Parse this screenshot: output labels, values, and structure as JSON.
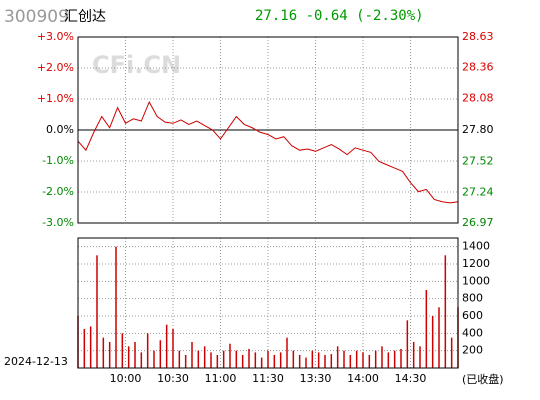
{
  "header": {
    "code": "300909",
    "name": "汇创达",
    "quote": "27.16 -0.64 (-2.30%)",
    "watermark": "CFi.CN"
  },
  "chart_data": [
    {
      "type": "line",
      "xlim": [
        0,
        240
      ],
      "xticks": [
        30,
        60,
        90,
        120,
        150,
        180,
        210
      ],
      "ylim": [
        -3,
        3
      ],
      "yticks": [
        {
          "value": 3,
          "label": "+3.0%"
        },
        {
          "value": 2,
          "label": "+2.0%"
        },
        {
          "value": 1,
          "label": "+1.0%"
        },
        {
          "value": 0,
          "label": "0.0%"
        },
        {
          "value": -1,
          "label": "-1.0%"
        },
        {
          "value": -2,
          "label": "-2.0%"
        },
        {
          "value": -3,
          "label": "-3.0%"
        }
      ],
      "y2lim": [
        26.97,
        28.63
      ],
      "y2ticks": [
        28.63,
        28.36,
        28.08,
        {
          "value": 27.8,
          "label": "27.80"
        },
        27.52,
        27.24,
        26.97
      ],
      "grid": true,
      "x": [
        0,
        5,
        10,
        15,
        20,
        25,
        30,
        35,
        40,
        45,
        50,
        55,
        60,
        65,
        70,
        75,
        80,
        85,
        90,
        95,
        100,
        105,
        110,
        115,
        120,
        125,
        130,
        135,
        140,
        145,
        150,
        155,
        160,
        165,
        170,
        175,
        180,
        185,
        190,
        195,
        200,
        205,
        210,
        215,
        220,
        225,
        230,
        235,
        240
      ],
      "series": [
        {
          "axis": "y2",
          "color": "#cc0000",
          "values": [
            27.7,
            27.62,
            27.78,
            27.92,
            27.82,
            28.0,
            27.86,
            27.9,
            27.88,
            28.05,
            27.92,
            27.87,
            27.86,
            27.89,
            27.85,
            27.88,
            27.84,
            27.8,
            27.72,
            27.82,
            27.92,
            27.85,
            27.82,
            27.78,
            27.76,
            27.72,
            27.74,
            27.66,
            27.62,
            27.63,
            27.61,
            27.64,
            27.67,
            27.63,
            27.58,
            27.64,
            27.62,
            27.6,
            27.52,
            27.49,
            27.46,
            27.43,
            27.33,
            27.25,
            27.27,
            27.18,
            27.16,
            27.15,
            27.16
          ]
        }
      ]
    },
    {
      "type": "bar",
      "date": "2024-12-13",
      "status": "(已收盘)",
      "xlim": [
        0,
        240
      ],
      "xticks": [
        {
          "value": 30,
          "label": "10:00"
        },
        {
          "value": 60,
          "label": "10:30"
        },
        {
          "value": 90,
          "label": "11:00"
        },
        {
          "value": 120,
          "label": "11:30"
        },
        {
          "value": 150,
          "label": "13:30"
        },
        {
          "value": 180,
          "label": "14:00"
        },
        {
          "value": 210,
          "label": "14:30"
        }
      ],
      "ylim": [
        0,
        1500
      ],
      "yticks": [
        1400,
        1200,
        1000,
        800,
        600,
        400,
        200
      ],
      "grid": true,
      "x": [
        0,
        4,
        8,
        12,
        16,
        20,
        24,
        28,
        32,
        36,
        40,
        44,
        48,
        52,
        56,
        60,
        64,
        68,
        72,
        76,
        80,
        84,
        88,
        92,
        96,
        100,
        104,
        108,
        112,
        116,
        120,
        124,
        128,
        132,
        136,
        140,
        144,
        148,
        152,
        156,
        160,
        164,
        168,
        172,
        176,
        180,
        184,
        188,
        192,
        196,
        200,
        204,
        208,
        212,
        216,
        220,
        224,
        228,
        232,
        236,
        240
      ],
      "series": [
        {
          "color": "#cc0000",
          "values": [
            600,
            450,
            480,
            1300,
            350,
            300,
            1400,
            400,
            250,
            300,
            180,
            400,
            200,
            320,
            500,
            450,
            200,
            150,
            300,
            200,
            250,
            180,
            150,
            200,
            280,
            200,
            150,
            220,
            180,
            120,
            200,
            150,
            180,
            350,
            200,
            150,
            120,
            200,
            180,
            150,
            160,
            250,
            200,
            150,
            200,
            180,
            150,
            200,
            250,
            180,
            200,
            220,
            550,
            300,
            250,
            900,
            600,
            700,
            1300,
            350,
            700
          ]
        }
      ]
    }
  ]
}
